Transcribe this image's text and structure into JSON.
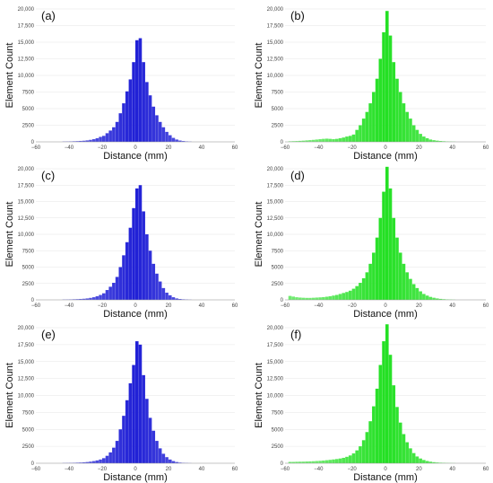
{
  "chart_data": [
    {
      "panel": "(a)",
      "type": "bar",
      "color": "#1f1fd6",
      "xlabel": "Distance (mm)",
      "ylabel": "Element Count",
      "xlim": [
        -60,
        60
      ],
      "ylim": [
        0,
        20000
      ],
      "xticks": [
        "−60",
        "−40",
        "−20",
        "0",
        "20",
        "40",
        "60"
      ],
      "yticks": [
        "0",
        "2500",
        "5000",
        "7500",
        "10,000",
        "12,500",
        "15,000",
        "17,500",
        "20,000"
      ],
      "bin_width": 2,
      "x": [
        -44,
        -42,
        -40,
        -38,
        -36,
        -34,
        -32,
        -30,
        -28,
        -26,
        -24,
        -22,
        -20,
        -18,
        -16,
        -14,
        -12,
        -10,
        -8,
        -6,
        -4,
        -2,
        0,
        2,
        4,
        6,
        8,
        10,
        12,
        14,
        16,
        18,
        20,
        22,
        24,
        26,
        28,
        30,
        32
      ],
      "values": [
        50,
        60,
        70,
        90,
        110,
        140,
        170,
        220,
        300,
        400,
        550,
        750,
        900,
        1300,
        1700,
        2200,
        3000,
        4300,
        5800,
        7600,
        9400,
        12000,
        15300,
        15600,
        12000,
        9000,
        7000,
        5300,
        4000,
        3000,
        2200,
        1500,
        1000,
        600,
        350,
        200,
        120,
        70,
        40
      ]
    },
    {
      "panel": "(b)",
      "type": "bar",
      "color": "#22e022",
      "xlabel": "Distance (mm)",
      "ylabel": "Element Count",
      "xlim": [
        -60,
        60
      ],
      "ylim": [
        0,
        20000
      ],
      "xticks": [
        "−60",
        "−40",
        "−20",
        "0",
        "20",
        "40",
        "60"
      ],
      "yticks": [
        "0",
        "2500",
        "5000",
        "7500",
        "10,000",
        "12,500",
        "15,000",
        "17,500",
        "20,000"
      ],
      "bin_width": 2,
      "x": [
        -58,
        -56,
        -54,
        -52,
        -50,
        -48,
        -46,
        -44,
        -42,
        -40,
        -38,
        -36,
        -34,
        -32,
        -30,
        -28,
        -26,
        -24,
        -22,
        -20,
        -18,
        -16,
        -14,
        -12,
        -10,
        -8,
        -6,
        -4,
        -2,
        0,
        2,
        4,
        6,
        8,
        10,
        12,
        14,
        16,
        18,
        20,
        22,
        24,
        26,
        28,
        30,
        32,
        34,
        36,
        38,
        40
      ],
      "values": [
        80,
        100,
        120,
        150,
        180,
        220,
        260,
        300,
        350,
        400,
        450,
        480,
        450,
        400,
        450,
        550,
        650,
        800,
        900,
        1100,
        1800,
        2500,
        3500,
        4500,
        5800,
        7500,
        9500,
        12500,
        16500,
        19700,
        16000,
        12000,
        9500,
        7500,
        5800,
        4500,
        3500,
        2500,
        1800,
        1200,
        800,
        550,
        350,
        250,
        180,
        130,
        90,
        60,
        40,
        30
      ]
    },
    {
      "panel": "(c)",
      "type": "bar",
      "color": "#1f1fd6",
      "xlabel": "Distance (mm)",
      "ylabel": "Element Count",
      "xlim": [
        -60,
        60
      ],
      "ylim": [
        0,
        20000
      ],
      "xticks": [
        "−60",
        "−40",
        "−20",
        "0",
        "20",
        "40",
        "60"
      ],
      "yticks": [
        "0",
        "2500",
        "5000",
        "7500",
        "10,000",
        "12,500",
        "15,000",
        "17,500",
        "20,000"
      ],
      "bin_width": 2,
      "x": [
        -44,
        -42,
        -40,
        -38,
        -36,
        -34,
        -32,
        -30,
        -28,
        -26,
        -24,
        -22,
        -20,
        -18,
        -16,
        -14,
        -12,
        -10,
        -8,
        -6,
        -4,
        -2,
        0,
        2,
        4,
        6,
        8,
        10,
        12,
        14,
        16,
        18,
        20,
        22,
        24,
        26,
        28,
        30,
        32
      ],
      "values": [
        50,
        60,
        70,
        90,
        110,
        140,
        170,
        220,
        300,
        400,
        550,
        750,
        1000,
        1500,
        2000,
        2600,
        3500,
        5000,
        6800,
        8800,
        11000,
        14000,
        17000,
        17500,
        13500,
        10000,
        7500,
        5500,
        4000,
        2800,
        1800,
        1100,
        700,
        400,
        220,
        130,
        80,
        50,
        30
      ]
    },
    {
      "panel": "(d)",
      "type": "bar",
      "color": "#22e022",
      "xlabel": "Distance (mm)",
      "ylabel": "Element Count",
      "xlim": [
        -60,
        60
      ],
      "ylim": [
        0,
        20000
      ],
      "xticks": [
        "−60",
        "−40",
        "−20",
        "0",
        "20",
        "40",
        "60"
      ],
      "yticks": [
        "0",
        "2500",
        "5000",
        "7500",
        "10,000",
        "12,500",
        "15,000",
        "17,500",
        "20,000"
      ],
      "bin_width": 2,
      "x": [
        -58,
        -56,
        -54,
        -52,
        -50,
        -48,
        -46,
        -44,
        -42,
        -40,
        -38,
        -36,
        -34,
        -32,
        -30,
        -28,
        -26,
        -24,
        -22,
        -20,
        -18,
        -16,
        -14,
        -12,
        -10,
        -8,
        -6,
        -4,
        -2,
        0,
        2,
        4,
        6,
        8,
        10,
        12,
        14,
        16,
        18,
        20,
        22,
        24,
        26,
        28,
        30,
        32,
        34,
        36,
        38,
        40
      ],
      "values": [
        600,
        500,
        400,
        350,
        320,
        300,
        300,
        320,
        350,
        380,
        420,
        480,
        550,
        650,
        750,
        900,
        1050,
        1200,
        1400,
        1700,
        2100,
        2600,
        3300,
        4200,
        5500,
        7200,
        9500,
        12500,
        16500,
        20300,
        17000,
        12500,
        9500,
        7200,
        5500,
        4200,
        3200,
        2400,
        1800,
        1300,
        900,
        650,
        450,
        320,
        220,
        150,
        100,
        70,
        50,
        30
      ]
    },
    {
      "panel": "(e)",
      "type": "bar",
      "color": "#1f1fd6",
      "xlabel": "Distance (mm)",
      "ylabel": "Element Count",
      "xlim": [
        -60,
        60
      ],
      "ylim": [
        0,
        20000
      ],
      "xticks": [
        "−60",
        "−40",
        "−20",
        "0",
        "20",
        "40",
        "60"
      ],
      "yticks": [
        "0",
        "2500",
        "5000",
        "7500",
        "10,000",
        "12,500",
        "15,000",
        "17,500",
        "20,000"
      ],
      "bin_width": 2,
      "x": [
        -44,
        -42,
        -40,
        -38,
        -36,
        -34,
        -32,
        -30,
        -28,
        -26,
        -24,
        -22,
        -20,
        -18,
        -16,
        -14,
        -12,
        -10,
        -8,
        -6,
        -4,
        -2,
        0,
        2,
        4,
        6,
        8,
        10,
        12,
        14,
        16,
        18,
        20,
        22,
        24,
        26,
        28,
        30,
        32
      ],
      "values": [
        40,
        50,
        60,
        70,
        90,
        110,
        140,
        180,
        240,
        320,
        420,
        550,
        750,
        1100,
        1600,
        2300,
        3300,
        5000,
        7000,
        9300,
        11800,
        14500,
        18000,
        17500,
        13000,
        9500,
        6700,
        4800,
        3300,
        2200,
        1400,
        900,
        550,
        320,
        180,
        100,
        60,
        40,
        20
      ]
    },
    {
      "panel": "(f)",
      "type": "bar",
      "color": "#22e022",
      "xlabel": "Distance (mm)",
      "ylabel": "Element Count",
      "xlim": [
        -60,
        60
      ],
      "ylim": [
        0,
        20000
      ],
      "xticks": [
        "−60",
        "−40",
        "−20",
        "0",
        "20",
        "40",
        "60"
      ],
      "yticks": [
        "0",
        "2500",
        "5000",
        "7500",
        "10,000",
        "12,500",
        "15,000",
        "17,500",
        "20,000"
      ],
      "bin_width": 2,
      "x": [
        -58,
        -56,
        -54,
        -52,
        -50,
        -48,
        -46,
        -44,
        -42,
        -40,
        -38,
        -36,
        -34,
        -32,
        -30,
        -28,
        -26,
        -24,
        -22,
        -20,
        -18,
        -16,
        -14,
        -12,
        -10,
        -8,
        -6,
        -4,
        -2,
        0,
        2,
        4,
        6,
        8,
        10,
        12,
        14,
        16,
        18,
        20,
        22,
        24,
        26,
        28,
        30,
        32,
        34,
        36,
        38,
        40
      ],
      "values": [
        200,
        200,
        220,
        230,
        240,
        260,
        280,
        300,
        330,
        360,
        400,
        450,
        500,
        560,
        620,
        700,
        800,
        950,
        1150,
        1450,
        1900,
        2500,
        3400,
        4600,
        6200,
        8400,
        11000,
        14500,
        18000,
        20500,
        16000,
        11500,
        8300,
        6000,
        4300,
        3100,
        2200,
        1500,
        1000,
        700,
        480,
        330,
        230,
        160,
        110,
        80,
        60,
        40,
        30,
        20
      ]
    }
  ]
}
